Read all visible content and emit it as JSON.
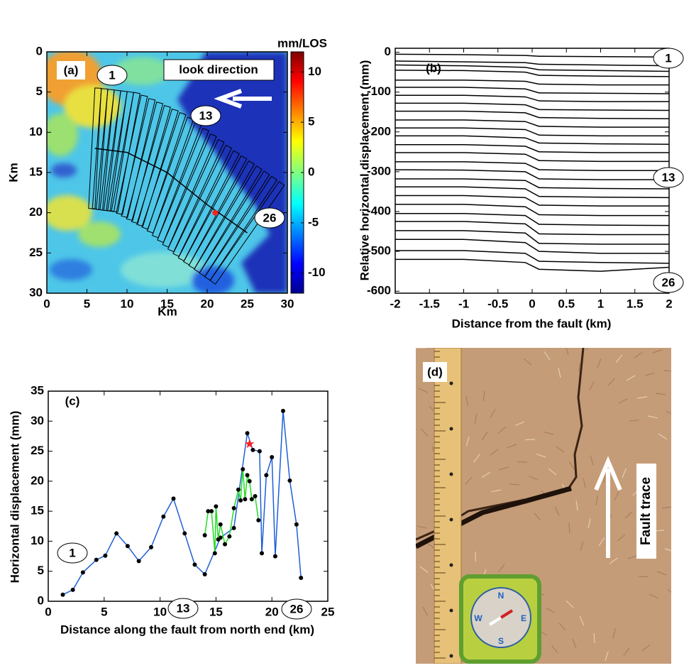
{
  "chart_data": [
    {
      "type": "map",
      "label": "(a)",
      "xlabel": "Km",
      "ylabel": "Km",
      "xlim": [
        0,
        30
      ],
      "ylim": [
        30,
        0
      ],
      "xticks": [
        0,
        5,
        10,
        15,
        20,
        25,
        30
      ],
      "yticks": [
        0,
        5,
        10,
        15,
        20,
        25,
        30
      ],
      "colorbar": {
        "label": "mm/LOS",
        "lim": [
          -12,
          12
        ],
        "ticks": [
          10,
          5,
          0,
          -5,
          -10
        ]
      },
      "annotation": "look direction",
      "profile_labels": [
        "1",
        "13",
        "26"
      ]
    },
    {
      "type": "line",
      "label": "(b)",
      "xlabel": "Distance from the fault (km)",
      "ylabel": "Relative horizontal displacement (mm)",
      "xlim": [
        -2,
        2
      ],
      "ylim": [
        -605,
        10
      ],
      "xticks": [
        -2,
        -1.5,
        -1,
        -0.5,
        0,
        0.5,
        1,
        1.5,
        2
      ],
      "yticks": [
        0,
        -100,
        -200,
        -300,
        -400,
        -500,
        -600
      ],
      "color": "#000000",
      "profile_labels": [
        "1",
        "13",
        "26"
      ],
      "x": [
        -2,
        -1,
        -0.1,
        0.1,
        1,
        2
      ],
      "series": [
        {
          "values": [
            -5,
            -6,
            -8,
            -10,
            -11,
            -12
          ]
        },
        {
          "values": [
            -22,
            -24,
            -26,
            -30,
            -32,
            -34
          ]
        },
        {
          "values": [
            -32,
            -34,
            -38,
            -44,
            -46,
            -48
          ]
        },
        {
          "values": [
            -45,
            -46,
            -50,
            -58,
            -60,
            -61
          ]
        },
        {
          "values": [
            -70,
            -70,
            -73,
            -80,
            -82,
            -82
          ]
        },
        {
          "values": [
            -88,
            -88,
            -92,
            -102,
            -103,
            -104
          ]
        },
        {
          "values": [
            -108,
            -108,
            -112,
            -122,
            -124,
            -124
          ]
        },
        {
          "values": [
            -128,
            -128,
            -132,
            -144,
            -145,
            -146
          ]
        },
        {
          "values": [
            -148,
            -148,
            -152,
            -164,
            -166,
            -167
          ]
        },
        {
          "values": [
            -170,
            -170,
            -174,
            -186,
            -188,
            -188
          ]
        },
        {
          "values": [
            -190,
            -190,
            -194,
            -208,
            -210,
            -210
          ]
        },
        {
          "values": [
            -210,
            -210,
            -215,
            -228,
            -230,
            -231
          ]
        },
        {
          "values": [
            -232,
            -232,
            -236,
            -250,
            -252,
            -252
          ]
        },
        {
          "values": [
            -252,
            -252,
            -256,
            -272,
            -274,
            -274
          ]
        },
        {
          "values": [
            -275,
            -275,
            -279,
            -295,
            -297,
            -297
          ]
        },
        {
          "values": [
            -295,
            -296,
            -300,
            -318,
            -320,
            -320
          ]
        },
        {
          "values": [
            -318,
            -318,
            -322,
            -340,
            -342,
            -343
          ]
        },
        {
          "values": [
            -338,
            -338,
            -343,
            -362,
            -364,
            -365
          ]
        },
        {
          "values": [
            -360,
            -360,
            -365,
            -384,
            -386,
            -386
          ]
        },
        {
          "values": [
            -382,
            -382,
            -388,
            -408,
            -410,
            -410
          ]
        },
        {
          "values": [
            -405,
            -405,
            -410,
            -432,
            -434,
            -435
          ]
        },
        {
          "values": [
            -425,
            -425,
            -431,
            -456,
            -458,
            -458
          ]
        },
        {
          "values": [
            -448,
            -448,
            -454,
            -480,
            -482,
            -482
          ]
        },
        {
          "values": [
            -470,
            -470,
            -478,
            -500,
            -505,
            -505
          ]
        },
        {
          "values": [
            -498,
            -498,
            -505,
            -525,
            -528,
            -530
          ]
        },
        {
          "values": [
            -520,
            -520,
            -528,
            -545,
            -550,
            -540
          ]
        }
      ]
    },
    {
      "type": "line",
      "label": "(c)",
      "xlabel": "Distance along the fault from north end (km)",
      "ylabel": "Horizontal displacement (mm)",
      "xlim": [
        0,
        25
      ],
      "ylim": [
        0,
        35
      ],
      "xticks": [
        0,
        5,
        10,
        15,
        20,
        25
      ],
      "yticks": [
        0,
        5,
        10,
        15,
        20,
        25,
        30,
        35
      ],
      "profile_labels": [
        "1",
        "13",
        "26"
      ],
      "series": [
        {
          "color": "#1f5fd6",
          "x": [
            1.3,
            2.2,
            3.1,
            4.3,
            5.1,
            6.1,
            7.1,
            8.1,
            9.2,
            10.3,
            11.2,
            12.2,
            13.1,
            14.0,
            15.4,
            16.6,
            17.8,
            18.3,
            18.9,
            19.1,
            19.5,
            20.0,
            20.3,
            21.0,
            21.6,
            22.2,
            22.6
          ],
          "values": [
            1.1,
            1.9,
            4.8,
            6.9,
            7.6,
            11.3,
            9.2,
            6.7,
            9.0,
            14.1,
            17.1,
            11.3,
            6.1,
            4.5,
            10.6,
            12.2,
            28.0,
            25.2,
            25.0,
            8.0,
            21.0,
            24.0,
            7.5,
            31.7,
            20.1,
            12.8,
            3.9
          ]
        },
        {
          "color": "#22dd22",
          "x": [
            14.0,
            14.3,
            14.6,
            14.9,
            15.0,
            15.2,
            15.4,
            15.8,
            16.2,
            16.6,
            17.0,
            17.2,
            17.4,
            17.6,
            17.8,
            18.0,
            18.2,
            18.5,
            18.8
          ],
          "values": [
            11.0,
            15.0,
            15.0,
            8.0,
            15.8,
            10.3,
            12.8,
            9.5,
            10.8,
            15.5,
            18.6,
            16.8,
            22.0,
            17.0,
            21.0,
            20.0,
            17.0,
            17.5,
            13.5
          ]
        }
      ],
      "highlight": {
        "x": 18.0,
        "y": 26.2,
        "color": "#ff2020"
      }
    }
  ],
  "photo": {
    "label": "(d)",
    "annotation": "Fault trace",
    "compass": [
      "N",
      "E",
      "S",
      "W"
    ]
  }
}
